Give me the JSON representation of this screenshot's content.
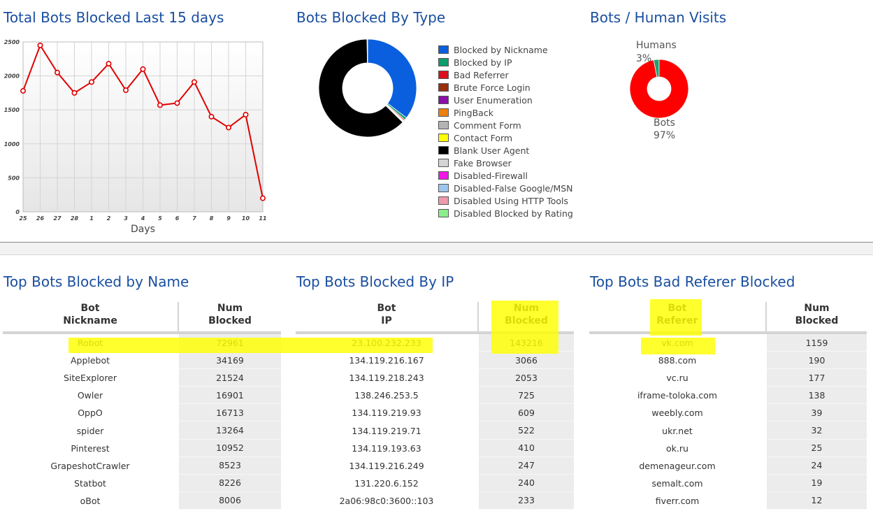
{
  "titles": {
    "line_chart": "Total Bots Blocked Last 15 days",
    "type_chart": "Bots Blocked By Type",
    "human_chart": "Bots / Human Visits",
    "table_name": "Top Bots Blocked by Name",
    "table_ip": "Top Bots Blocked By IP",
    "table_referer": "Top Bots Bad Referer Blocked"
  },
  "chart_data": [
    {
      "type": "line",
      "title": "Total Bots Blocked Last 15 days",
      "xlabel": "Days",
      "ylabel": "",
      "categories": [
        "25",
        "26",
        "27",
        "28",
        "1",
        "2",
        "3",
        "4",
        "5",
        "6",
        "7",
        "8",
        "9",
        "10",
        "11"
      ],
      "values": [
        1780,
        2450,
        2050,
        1750,
        1910,
        2180,
        1790,
        2100,
        1570,
        1600,
        1910,
        1400,
        1240,
        1430,
        200
      ],
      "ylim": [
        0,
        2500
      ],
      "yticks": [
        "0",
        "500",
        "1000",
        "1500",
        "2000",
        "2500"
      ],
      "grid": true,
      "line_color": "#e00000"
    },
    {
      "type": "pie",
      "title": "Bots Blocked By Type",
      "donut": true,
      "legend_position": "right",
      "labels": [
        "Blocked by Nickname",
        "Blocked by IP",
        "Bad Referrer",
        "Brute Force Login",
        "User Enumeration",
        "PingBack",
        "Comment Form",
        "Contact Form",
        "Blank User Agent",
        "Fake Browser",
        "Disabled-Firewall",
        "Disabled-False Google/MSN",
        "Disabled Using HTTP Tools",
        "Disabled Blocked by Rating"
      ],
      "values": [
        35.4,
        0.8,
        0.4,
        0.2,
        0.2,
        0.1,
        0.1,
        0.1,
        62.5,
        0.1,
        0.0,
        0.1,
        0.0,
        0.0
      ],
      "colors": [
        "#0a5fdf",
        "#0c9e6e",
        "#dd0f1c",
        "#9b2e0f",
        "#8a0fa8",
        "#ef7f0c",
        "#b4b4b4",
        "#ffff00",
        "#000000",
        "#d4d4d4",
        "#f018e8",
        "#9cc6ef",
        "#ef9aab",
        "#8cef8c"
      ]
    },
    {
      "type": "pie",
      "title": "Bots / Human Visits",
      "donut": true,
      "labels": [
        "Humans",
        "Bots"
      ],
      "values": [
        3,
        97
      ],
      "percent_labels": [
        "3%",
        "97%"
      ],
      "colors": [
        "#20a070",
        "#ff0000"
      ]
    },
    {
      "type": "table",
      "title": "Top Bots Blocked by Name",
      "header": [
        [
          "Bot",
          "Nickname"
        ],
        [
          "Num",
          "Blocked"
        ]
      ],
      "rows": [
        [
          "Robot",
          "72961"
        ],
        [
          "Applebot",
          "34169"
        ],
        [
          "SiteExplorer",
          "21524"
        ],
        [
          "Owler",
          "16901"
        ],
        [
          "OppO",
          "16713"
        ],
        [
          "spider",
          "13264"
        ],
        [
          "Pinterest",
          "10952"
        ],
        [
          "GrapeshotCrawler",
          "8523"
        ],
        [
          "Statbot",
          "8226"
        ],
        [
          "oBot",
          "8006"
        ]
      ]
    },
    {
      "type": "table",
      "title": "Top Bots Blocked By IP",
      "header": [
        [
          "Bot",
          "IP"
        ],
        [
          "Num",
          "Blocked"
        ]
      ],
      "rows": [
        [
          "23.100.232.233",
          "143216"
        ],
        [
          "134.119.216.167",
          "3066"
        ],
        [
          "134.119.218.243",
          "2053"
        ],
        [
          "138.246.253.5",
          "725"
        ],
        [
          "134.119.219.93",
          "609"
        ],
        [
          "134.119.219.71",
          "522"
        ],
        [
          "134.119.193.63",
          "410"
        ],
        [
          "134.119.216.249",
          "247"
        ],
        [
          "131.220.6.152",
          "240"
        ],
        [
          "2a06:98c0:3600::103",
          "233"
        ]
      ]
    },
    {
      "type": "table",
      "title": "Top Bots Bad Referer Blocked",
      "header": [
        [
          "Bot",
          "Referer"
        ],
        [
          "Num",
          "Blocked"
        ]
      ],
      "rows": [
        [
          "vk.com",
          "1159"
        ],
        [
          "888.com",
          "190"
        ],
        [
          "vc.ru",
          "177"
        ],
        [
          "iframe-toloka.com",
          "138"
        ],
        [
          "weebly.com",
          "39"
        ],
        [
          "ukr.net",
          "32"
        ],
        [
          "ok.ru",
          "25"
        ],
        [
          "demenageur.com",
          "24"
        ],
        [
          "semalt.com",
          "19"
        ],
        [
          "fiverr.com",
          "12"
        ]
      ]
    }
  ],
  "highlight_color": "#ffff00"
}
